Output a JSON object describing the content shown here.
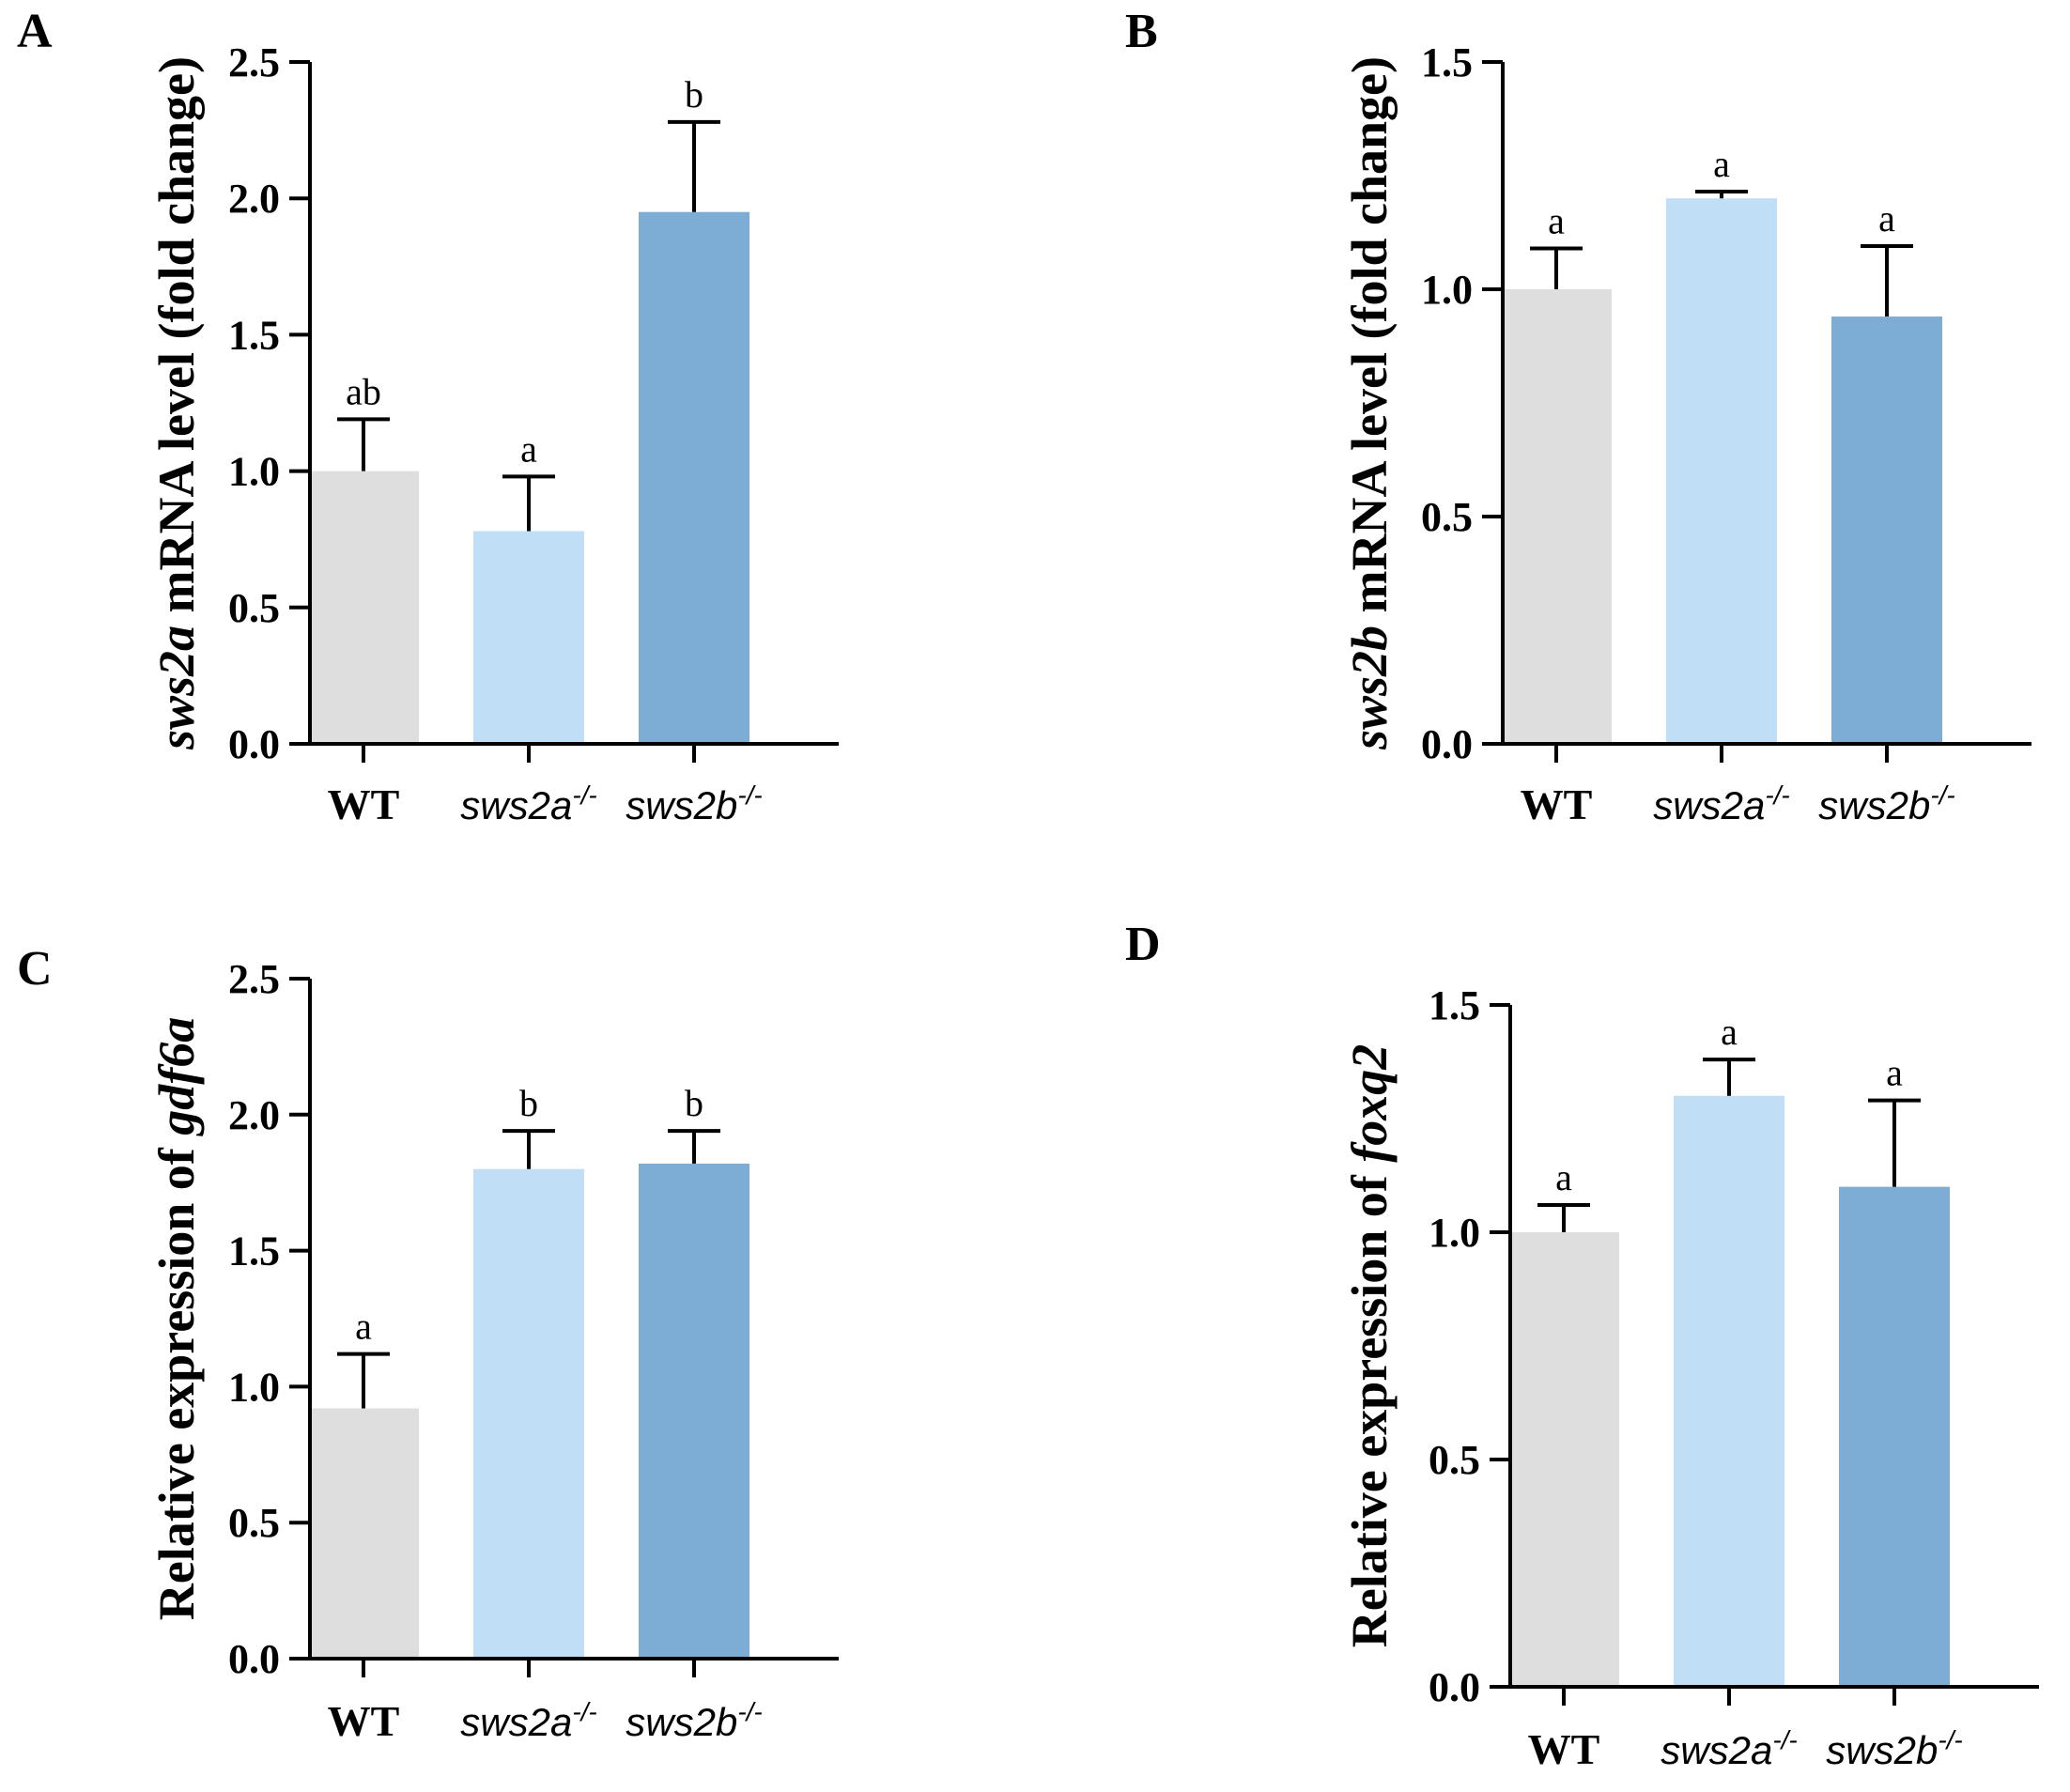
{
  "chart_data": [
    {
      "panel": "A",
      "type": "bar",
      "ylabel": {
        "italic": "sws2a",
        "rest": " mRNA level (fold change)"
      },
      "ylim": [
        0,
        2.5
      ],
      "yticks": [
        "0.0",
        "0.5",
        "1.0",
        "1.5",
        "2.0",
        "2.5"
      ],
      "categories": [
        {
          "base": "WT",
          "sup": "",
          "italic": false
        },
        {
          "base": "sws2a",
          "sup": "-/-",
          "italic": true
        },
        {
          "base": "sws2b",
          "sup": "-/-",
          "italic": true
        }
      ],
      "values": [
        1.0,
        0.78,
        1.95
      ],
      "errors": [
        0.19,
        0.2,
        0.33
      ],
      "significance": [
        "ab",
        "a",
        "b"
      ]
    },
    {
      "panel": "B",
      "type": "bar",
      "ylabel": {
        "italic": "sws2b",
        "rest": " mRNA level (fold change)"
      },
      "ylim": [
        0,
        1.5
      ],
      "yticks": [
        "0.0",
        "0.5",
        "1.0",
        "1.5"
      ],
      "categories": [
        {
          "base": "WT",
          "sup": "",
          "italic": false
        },
        {
          "base": "sws2a",
          "sup": "-/-",
          "italic": true
        },
        {
          "base": "sws2b",
          "sup": "-/-",
          "italic": true
        }
      ],
      "values": [
        1.0,
        1.2,
        0.94
      ],
      "errors": [
        0.09,
        0.015,
        0.155
      ],
      "significance": [
        "a",
        "a",
        "a"
      ]
    },
    {
      "panel": "C",
      "type": "bar",
      "ylabel": {
        "prefix": "Relative expression of ",
        "italic": "gdf6a"
      },
      "ylim": [
        0,
        2.5
      ],
      "yticks": [
        "0.0",
        "0.5",
        "1.0",
        "1.5",
        "2.0",
        "2.5"
      ],
      "categories": [
        {
          "base": "WT",
          "sup": "",
          "italic": false
        },
        {
          "base": "sws2a",
          "sup": "-/-",
          "italic": true
        },
        {
          "base": "sws2b",
          "sup": "-/-",
          "italic": true
        }
      ],
      "values": [
        0.92,
        1.8,
        1.82
      ],
      "errors": [
        0.2,
        0.14,
        0.12
      ],
      "significance": [
        "a",
        "b",
        "b"
      ]
    },
    {
      "panel": "D",
      "type": "bar",
      "ylabel": {
        "prefix": "Relative expression of ",
        "italic": "foxq2"
      },
      "ylim": [
        0,
        1.5
      ],
      "yticks": [
        "0.0",
        "0.5",
        "1.0",
        "1.5"
      ],
      "categories": [
        {
          "base": "WT",
          "sup": "",
          "italic": false
        },
        {
          "base": "sws2a",
          "sup": "-/-",
          "italic": true
        },
        {
          "base": "sws2b",
          "sup": "-/-",
          "italic": true
        }
      ],
      "values": [
        1.0,
        1.3,
        1.1
      ],
      "errors": [
        0.06,
        0.08,
        0.19
      ],
      "significance": [
        "a",
        "a",
        "a"
      ]
    }
  ],
  "colors": {
    "bars": [
      "#dedede",
      "#c1def7",
      "#7dadd5"
    ],
    "axis": "#000000"
  }
}
